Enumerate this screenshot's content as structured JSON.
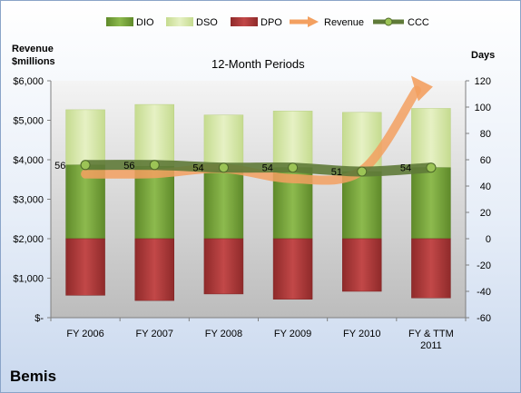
{
  "chart_data": {
    "type": "bar",
    "title": "12-Month Periods",
    "company": "Bemis",
    "left_axis_title": [
      "Revenue",
      "$millions"
    ],
    "right_axis_title": "Days",
    "categories": [
      [
        "FY 2006"
      ],
      [
        "FY 2007"
      ],
      [
        "FY 2008"
      ],
      [
        "FY 2009"
      ],
      [
        "FY 2010"
      ],
      [
        "FY & TTM",
        "2011"
      ]
    ],
    "left_axis": {
      "min": 0,
      "max": 6000,
      "ticks": [
        0,
        1000,
        2000,
        3000,
        4000,
        5000,
        6000
      ],
      "tick_labels": [
        "$-",
        "$1,000",
        "$2,000",
        "$3,000",
        "$4,000",
        "$5,000",
        "$6,000"
      ]
    },
    "right_axis": {
      "min": -60,
      "max": 120,
      "ticks": [
        -60,
        -40,
        -20,
        0,
        20,
        40,
        60,
        80,
        100,
        120
      ],
      "tick_labels": [
        "-60",
        "-40",
        "-20",
        "0",
        "20",
        "40",
        "60",
        "80",
        "100",
        "120"
      ]
    },
    "series": [
      {
        "name": "DIO",
        "axis": "right",
        "kind": "stacked-bar",
        "values": [
          56,
          55,
          53,
          54,
          51,
          54
        ],
        "color": "#76a13a"
      },
      {
        "name": "DSO",
        "axis": "right",
        "kind": "stacked-bar",
        "values": [
          42,
          47,
          41,
          43,
          45,
          45
        ],
        "color": "#d7e8a8"
      },
      {
        "name": "DPO",
        "axis": "right",
        "kind": "negative-bar",
        "values": [
          -43,
          -47,
          -42,
          -46,
          -40,
          -45
        ],
        "color": "#b23b3b"
      },
      {
        "name": "Revenue",
        "axis": "left",
        "kind": "line",
        "values": [
          3640,
          3650,
          3780,
          3520,
          3730,
          5850
        ],
        "color": "#f3a060"
      },
      {
        "name": "CCC",
        "axis": "right",
        "kind": "line",
        "values": [
          56,
          56,
          54,
          54,
          51,
          54
        ],
        "labels": [
          "56",
          "56",
          "54",
          "54",
          "51",
          "54"
        ],
        "color": "#5f7a38"
      }
    ],
    "legend_position": "top",
    "grid": false
  }
}
